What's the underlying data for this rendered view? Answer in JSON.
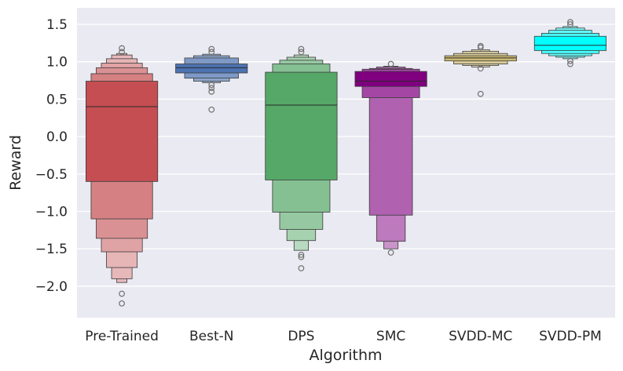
{
  "chart_data": {
    "type": "boxenplot",
    "title": "",
    "xlabel": "Algorithm",
    "ylabel": "Reward",
    "ylim": [
      -2.42,
      1.72
    ],
    "yticks": [
      -2.0,
      -1.5,
      -1.0,
      -0.5,
      0.0,
      0.5,
      1.0,
      1.5
    ],
    "ytick_labels": [
      "−2.0",
      "−1.5",
      "−1.0",
      "−0.5",
      "0.0",
      "0.5",
      "1.0",
      "1.5"
    ],
    "grid": true,
    "categories": [
      "Pre-Trained",
      "Best-N",
      "DPS",
      "SMC",
      "SVDD-MC",
      "SVDD-PM"
    ],
    "series": [
      {
        "name": "Pre-Trained",
        "color": "#c44e52",
        "median": 0.4,
        "levels": [
          {
            "low": -0.6,
            "high": 0.74
          },
          {
            "low": -1.1,
            "high": 0.84
          },
          {
            "low": -1.36,
            "high": 0.92
          },
          {
            "low": -1.54,
            "high": 0.98
          },
          {
            "low": -1.75,
            "high": 1.04
          },
          {
            "low": -1.9,
            "high": 1.09
          },
          {
            "low": -1.95,
            "high": 1.11
          }
        ],
        "outliers": [
          -2.1,
          -2.23,
          1.13,
          1.18
        ]
      },
      {
        "name": "Best-N",
        "color": "#4c72b0",
        "median": 0.92,
        "levels": [
          {
            "low": 0.85,
            "high": 0.97
          },
          {
            "low": 0.78,
            "high": 1.05
          },
          {
            "low": 0.74,
            "high": 1.08
          },
          {
            "low": 0.72,
            "high": 1.1
          }
        ],
        "outliers": [
          0.36,
          0.6,
          0.65,
          0.69,
          1.13,
          1.17
        ]
      },
      {
        "name": "DPS",
        "color": "#55a868",
        "median": 0.42,
        "levels": [
          {
            "low": -0.58,
            "high": 0.86
          },
          {
            "low": -1.01,
            "high": 0.97
          },
          {
            "low": -1.24,
            "high": 1.02
          },
          {
            "low": -1.39,
            "high": 1.06
          },
          {
            "low": -1.52,
            "high": 1.09
          }
        ],
        "outliers": [
          -1.58,
          -1.61,
          -1.76,
          1.13,
          1.17
        ]
      },
      {
        "name": "SMC",
        "color": "#800080",
        "median": 0.74,
        "levels": [
          {
            "low": 0.67,
            "high": 0.87
          },
          {
            "low": 0.52,
            "high": 0.9
          },
          {
            "low": -1.05,
            "high": 0.91
          },
          {
            "low": -1.4,
            "high": 0.93
          },
          {
            "low": -1.5,
            "high": 0.94
          }
        ],
        "outliers": [
          -1.55,
          0.97
        ]
      },
      {
        "name": "SVDD-MC",
        "color": "#ccb974",
        "median": 1.05,
        "levels": [
          {
            "low": 1.01,
            "high": 1.08
          },
          {
            "low": 0.97,
            "high": 1.11
          },
          {
            "low": 0.95,
            "high": 1.14
          },
          {
            "low": 0.93,
            "high": 1.16
          }
        ],
        "outliers": [
          0.57,
          0.91,
          1.19,
          1.21
        ]
      },
      {
        "name": "SVDD-PM",
        "color": "#00ffff",
        "median": 1.22,
        "levels": [
          {
            "low": 1.15,
            "high": 1.34
          },
          {
            "low": 1.11,
            "high": 1.38
          },
          {
            "low": 1.08,
            "high": 1.42
          },
          {
            "low": 1.06,
            "high": 1.45
          },
          {
            "low": 1.04,
            "high": 1.47
          }
        ],
        "outliers": [
          0.97,
          1.01,
          1.5,
          1.53
        ]
      }
    ]
  }
}
